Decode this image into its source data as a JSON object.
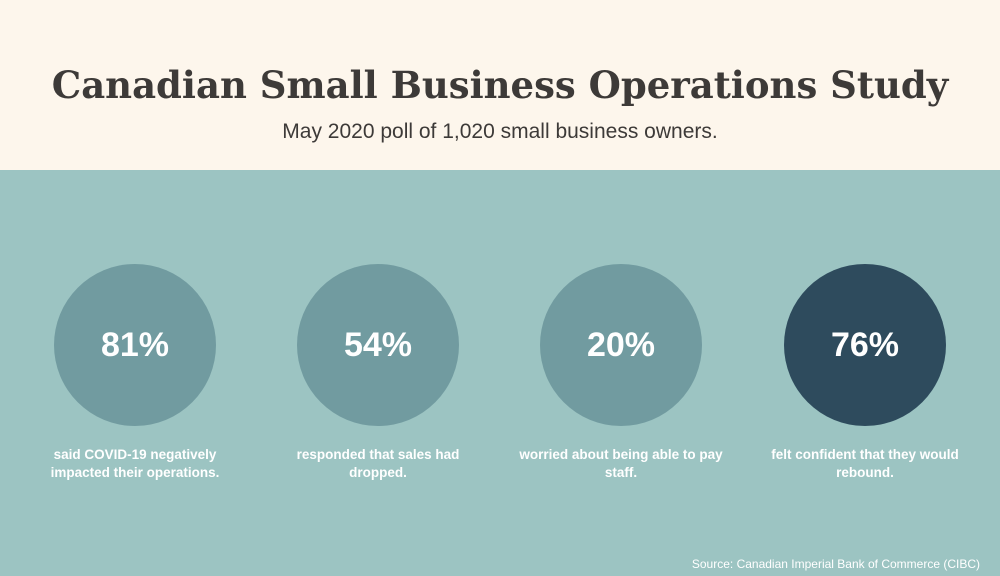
{
  "header": {
    "title": "Canadian Small Business Operations Study",
    "subtitle": "May 2020 poll of 1,020 small business owners."
  },
  "stats": [
    {
      "value": "81%",
      "caption": "said COVID-19 negatively impacted their operations.",
      "color": "#719ba0"
    },
    {
      "value": "54%",
      "caption": "responded that sales had dropped.",
      "color": "#719ba0"
    },
    {
      "value": "20%",
      "caption": "worried about being able to pay staff.",
      "color": "#719ba0"
    },
    {
      "value": "76%",
      "caption": "felt confident that they would rebound.",
      "color": "#2e4b5d"
    }
  ],
  "footer": {
    "source": "Source: Canadian Imperial Bank of Commerce (CIBC)"
  },
  "colors": {
    "header_background": "#fdf6ec",
    "main_background": "#9cc4c2",
    "text_dark": "#3d3a38"
  }
}
